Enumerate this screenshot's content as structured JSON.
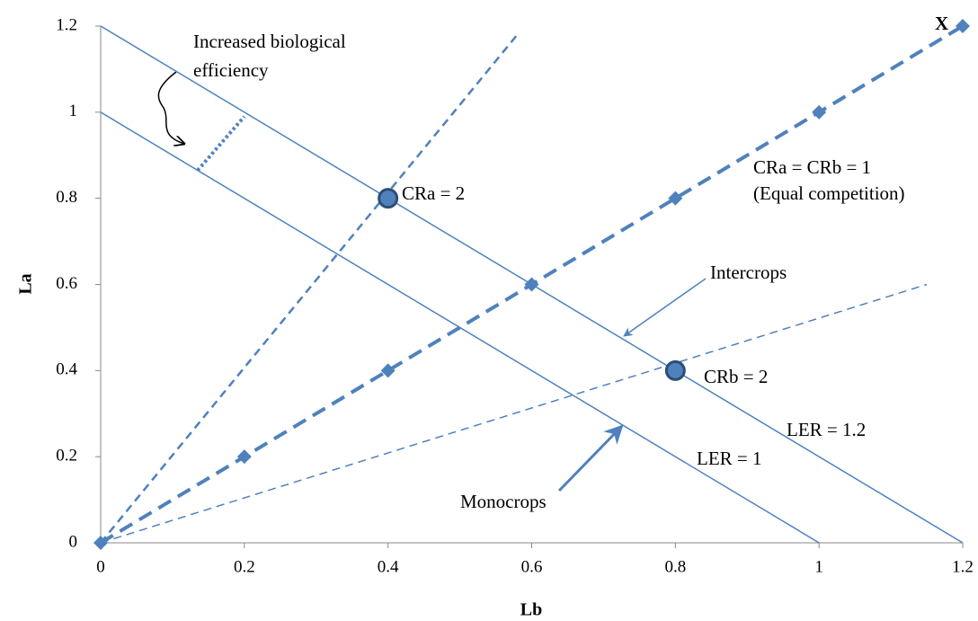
{
  "chart_data": {
    "type": "line",
    "xlabel": "Lb",
    "ylabel": "La",
    "xlim": [
      0,
      1.2
    ],
    "ylim": [
      0,
      1.2
    ],
    "xticks": [
      0,
      0.2,
      0.4,
      0.6,
      0.8,
      1,
      1.2
    ],
    "yticks": [
      0,
      0.2,
      0.4,
      0.6,
      0.8,
      1,
      1.2
    ],
    "color": "#4f81bd",
    "series": [
      {
        "name": "LER = 1",
        "x": [
          0,
          1
        ],
        "values": [
          1,
          0
        ],
        "dash": "solid",
        "width": 1.5
      },
      {
        "name": "LER = 1.2",
        "x": [
          0,
          1.2
        ],
        "values": [
          1.2,
          0
        ],
        "dash": "solid",
        "width": 1.5
      },
      {
        "name": "CRa = 2",
        "x": [
          0,
          0.58
        ],
        "values": [
          0,
          1.18
        ],
        "dash": "dashed",
        "width": 2.5
      },
      {
        "name": "CRb = 2",
        "x": [
          0,
          1.15
        ],
        "values": [
          0,
          0.6
        ],
        "dash": "dashed",
        "width": 1.5
      },
      {
        "name": "CRa = CRb = 1",
        "x": [
          0,
          0.2,
          0.4,
          0.6,
          0.8,
          1,
          1.2
        ],
        "values": [
          0,
          0.2,
          0.4,
          0.6,
          0.8,
          1,
          1.2
        ],
        "dash": "dashed",
        "width": 4,
        "marker": "diamond"
      },
      {
        "x": [
          0.135,
          0.2
        ],
        "values": [
          0.865,
          0.99
        ],
        "dash": "dotted",
        "width": 4
      }
    ],
    "points": {
      "x": [
        0.4,
        0.8
      ],
      "values": [
        0.8,
        0.4
      ],
      "color": "#4f81bd",
      "edgecolor": "#2c4d75"
    },
    "annotations": [
      "X",
      "Increased biological",
      "efficiency",
      "(Equal competition)",
      "Intercrops",
      "Monocrops"
    ]
  }
}
